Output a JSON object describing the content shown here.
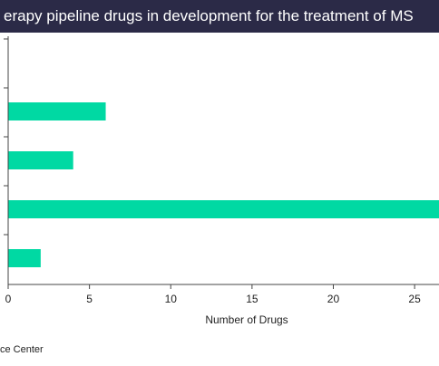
{
  "title": "erapy pipeline drugs in development for the treatment of MS",
  "source": "ce Center",
  "colors": {
    "bar": "#00d9a3",
    "title_bg": "#2b2a47",
    "axis": "#444444"
  },
  "chart_data": {
    "type": "bar",
    "orientation": "horizontal",
    "categories": [
      "",
      "",
      "",
      ""
    ],
    "values": [
      6,
      4,
      27,
      2
    ],
    "xlabel": "Number of Drugs",
    "ylabel": "",
    "xlim": [
      0,
      26.5
    ],
    "xticks": [
      0,
      5,
      10,
      15,
      20,
      25
    ],
    "grid": false
  }
}
